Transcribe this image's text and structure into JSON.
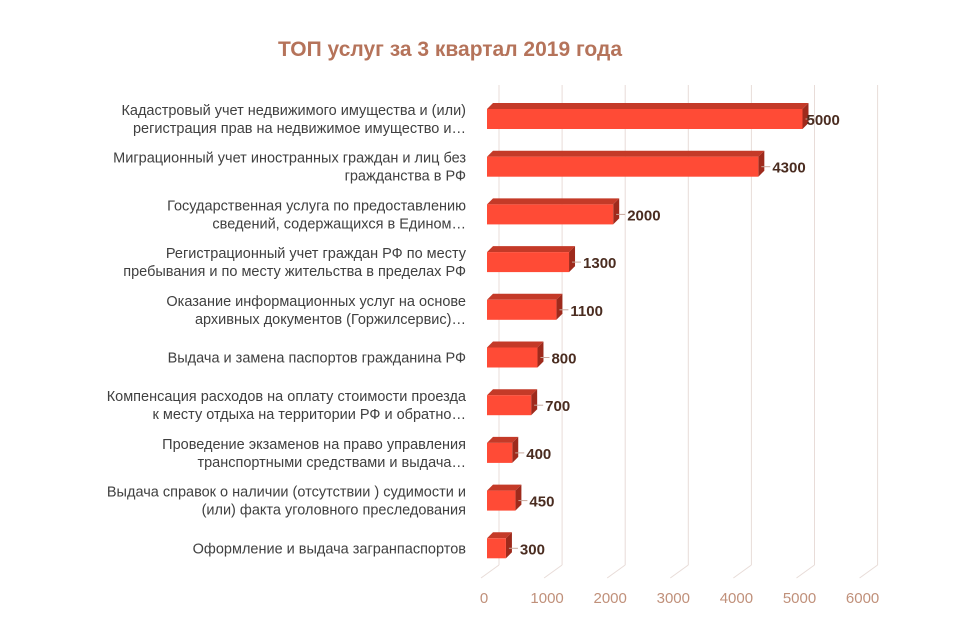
{
  "chart_data": {
    "type": "bar",
    "orientation": "horizontal",
    "title": "ТОП услуг за 3 квартал 2019 года",
    "categories": [
      [
        "Кадастровый учет недвижимого имущества  и (или)",
        "регистрация прав на недвижимое имущество  и…"
      ],
      [
        "Миграционный учет иностранных граждан и лиц без",
        "гражданства в РФ"
      ],
      [
        "Государственная услуга по предоставлению",
        "сведений, содержащихся в Едином…"
      ],
      [
        "Регистрационный учет граждан РФ по месту",
        "пребывания и по месту жительства в пределах РФ"
      ],
      [
        "Оказание информационных услуг на основе",
        "архивных документов (Горжилсервис)…"
      ],
      [
        "Выдача и замена паспортов гражданина РФ"
      ],
      [
        "Компенсация расходов на оплату стоимости проезда",
        "к месту отдыха на территории РФ и обратно…"
      ],
      [
        "Проведение экзаменов на право управления",
        "транспортными средствами и выдача…"
      ],
      [
        "Выдача справок о наличии  (отсутствии ) судимости и",
        "(или) факта уголовного преследования"
      ],
      [
        "Оформление и выдача загранпаспортов"
      ]
    ],
    "values": [
      5000,
      4300,
      2000,
      1300,
      1100,
      800,
      700,
      400,
      450,
      300
    ],
    "xlim": [
      0,
      6000
    ],
    "xticks": [
      "0",
      "1000",
      "2000",
      "3000",
      "4000",
      "5000",
      "6000"
    ],
    "grid": true,
    "legend": "none",
    "colors": {
      "bar": "#ff4b36",
      "bar_top": "#c43a28",
      "bar_side": "#9e2a1c",
      "title": "#b5735a"
    }
  }
}
